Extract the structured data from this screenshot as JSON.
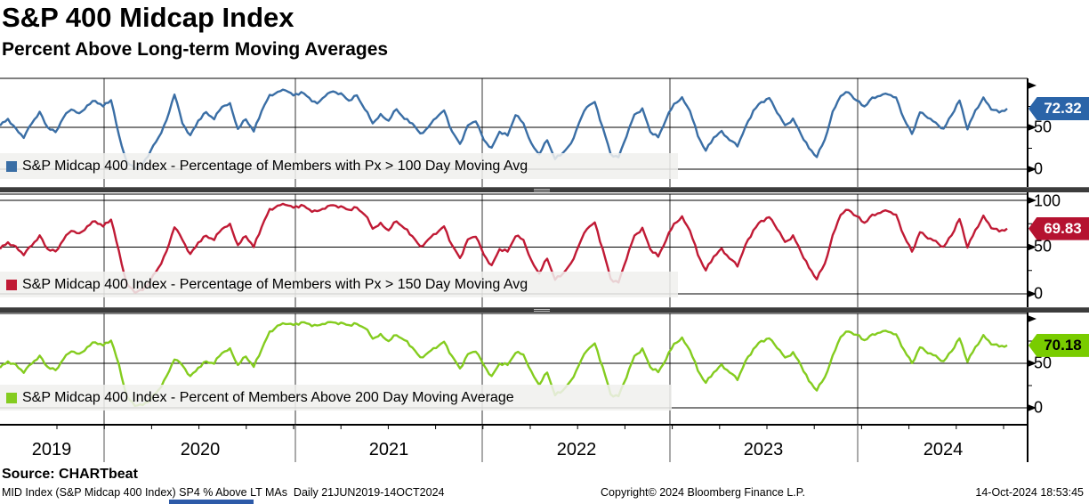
{
  "header": {
    "title": "S&P 400 Midcap Index",
    "subtitle": "Percent Above Long-term Moving Averages"
  },
  "source_line": "Source: CHARTbeat",
  "footer": {
    "left": "MID Index (S&P Midcap 400 Index) SP4 % Above LT MAs  Daily 21JUN2019-14OCT2024",
    "center": "Copyright© 2024 Bloomberg Finance L.P.",
    "right": "14-Oct-2024 18:53:45"
  },
  "x_axis": {
    "years": [
      "2019",
      "2020",
      "2021",
      "2022",
      "2023",
      "2024"
    ],
    "range": [
      "21JUN2019",
      "14OCT2024"
    ]
  },
  "chart_data": [
    {
      "type": "line",
      "panel": "top",
      "legend": "S&P Midcap 400 Index - Percentage of Members with Px > 100 Day Moving Avg",
      "color": "#3a6ea5",
      "badge_color": "#2a64a8",
      "badge_text_color": "#ffffff",
      "last_value": 72.32,
      "last_value_label": "72.32",
      "ylim": [
        0,
        100
      ],
      "ytick_labels": [
        "50",
        "0"
      ],
      "grid": true,
      "legend_position": "bottom-left",
      "values": [
        52,
        60,
        48,
        38,
        55,
        68,
        50,
        44,
        62,
        72,
        66,
        76,
        82,
        75,
        83,
        40,
        8,
        1,
        6,
        22,
        38,
        58,
        90,
        55,
        40,
        58,
        68,
        60,
        75,
        78,
        48,
        60,
        45,
        70,
        88,
        92,
        95,
        88,
        92,
        85,
        78,
        88,
        93,
        90,
        82,
        88,
        72,
        55,
        65,
        58,
        72,
        60,
        55,
        42,
        50,
        62,
        70,
        45,
        30,
        52,
        58,
        35,
        25,
        45,
        40,
        65,
        55,
        30,
        18,
        35,
        12,
        20,
        30,
        55,
        75,
        80,
        50,
        18,
        14,
        40,
        65,
        72,
        45,
        38,
        60,
        78,
        85,
        70,
        40,
        22,
        38,
        45,
        35,
        28,
        50,
        70,
        80,
        85,
        68,
        52,
        60,
        42,
        25,
        15,
        35,
        68,
        88,
        92,
        82,
        75,
        85,
        88,
        90,
        85,
        60,
        42,
        68,
        62,
        55,
        48,
        65,
        82,
        48,
        70,
        85,
        72,
        68,
        72.32
      ]
    },
    {
      "type": "line",
      "panel": "middle",
      "legend": "S&P Midcap 400 Index - Percentage of Members with Px > 150 Day Moving Avg",
      "color": "#c01a35",
      "badge_color": "#b51230",
      "badge_text_color": "#ffffff",
      "last_value": 69.83,
      "last_value_label": "69.83",
      "ylim": [
        0,
        100
      ],
      "ytick_labels": [
        "100",
        "50",
        "0"
      ],
      "grid": true,
      "legend_position": "bottom-left",
      "values": [
        48,
        55,
        50,
        42,
        52,
        62,
        48,
        45,
        58,
        68,
        64,
        72,
        78,
        72,
        80,
        45,
        10,
        2,
        4,
        15,
        28,
        45,
        72,
        58,
        42,
        55,
        62,
        58,
        70,
        74,
        52,
        62,
        50,
        72,
        90,
        94,
        96,
        92,
        95,
        90,
        88,
        92,
        95,
        93,
        90,
        92,
        85,
        70,
        75,
        68,
        78,
        70,
        62,
        50,
        58,
        65,
        72,
        52,
        38,
        58,
        62,
        42,
        30,
        48,
        45,
        62,
        58,
        35,
        22,
        38,
        15,
        22,
        32,
        52,
        70,
        76,
        48,
        16,
        12,
        38,
        62,
        70,
        48,
        40,
        58,
        75,
        82,
        68,
        42,
        25,
        40,
        48,
        38,
        30,
        52,
        68,
        78,
        82,
        70,
        55,
        62,
        45,
        28,
        16,
        32,
        62,
        85,
        90,
        83,
        76,
        84,
        87,
        89,
        84,
        62,
        45,
        66,
        60,
        56,
        50,
        63,
        80,
        50,
        68,
        83,
        71,
        67,
        69.83
      ]
    },
    {
      "type": "line",
      "panel": "bottom",
      "legend": "S&P Midcap 400 Index - Percent of Members Above 200 Day Moving Average",
      "color": "#84cc1f",
      "badge_color": "#79cc00",
      "badge_text_color": "#000000",
      "last_value": 70.18,
      "last_value_label": "70.18",
      "ylim": [
        0,
        100
      ],
      "ytick_labels": [
        "50",
        "0"
      ],
      "grid": true,
      "legend_position": "bottom-left",
      "values": [
        45,
        52,
        48,
        40,
        50,
        58,
        46,
        42,
        55,
        64,
        60,
        68,
        74,
        70,
        76,
        48,
        12,
        3,
        3,
        10,
        20,
        35,
        55,
        48,
        35,
        45,
        52,
        50,
        62,
        66,
        48,
        58,
        46,
        66,
        85,
        92,
        95,
        93,
        96,
        94,
        92,
        95,
        96,
        95,
        93,
        94,
        90,
        78,
        82,
        75,
        82,
        76,
        68,
        56,
        62,
        68,
        74,
        58,
        44,
        60,
        64,
        48,
        35,
        50,
        48,
        62,
        60,
        40,
        26,
        40,
        14,
        20,
        30,
        48,
        65,
        72,
        46,
        15,
        13,
        35,
        58,
        66,
        46,
        40,
        55,
        72,
        78,
        65,
        42,
        28,
        40,
        48,
        40,
        32,
        52,
        66,
        75,
        78,
        68,
        56,
        62,
        48,
        30,
        20,
        34,
        58,
        80,
        86,
        82,
        76,
        82,
        85,
        86,
        82,
        65,
        50,
        68,
        62,
        58,
        52,
        64,
        78,
        52,
        68,
        81,
        72,
        69,
        70.18
      ]
    }
  ]
}
